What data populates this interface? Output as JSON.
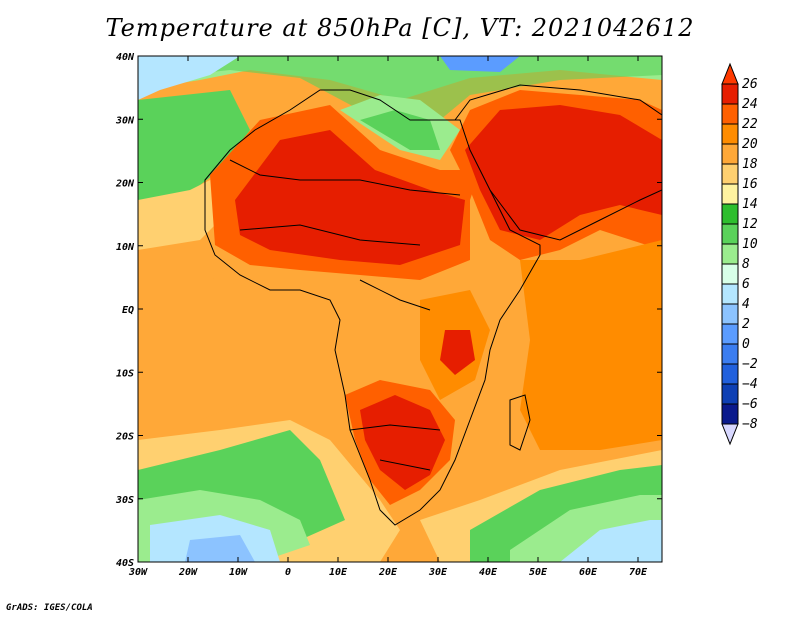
{
  "title": "Temperature at 850hPa [C], VT: 2021042612",
  "credit": "GrADS: IGES/COLA",
  "map": {
    "lat_labels": [
      "40N",
      "30N",
      "20N",
      "10N",
      "EQ",
      "10S",
      "20S",
      "30S",
      "40S"
    ],
    "lon_labels": [
      "30W",
      "20W",
      "10W",
      "0",
      "10E",
      "20E",
      "30E",
      "40E",
      "50E",
      "60E",
      "70E"
    ]
  },
  "colorbar": {
    "levels": [
      26,
      24,
      22,
      20,
      18,
      16,
      14,
      12,
      10,
      8,
      6,
      4,
      2,
      0,
      -2,
      -4,
      -6,
      -8
    ],
    "label_text": [
      "26",
      "24",
      "22",
      "20",
      "18",
      "16",
      "14",
      "12",
      "10",
      "8",
      "6",
      "4",
      "2",
      "0",
      "−2",
      "−4",
      "−6",
      "−8"
    ],
    "colors": [
      "#ff3a00",
      "#e61e00",
      "#ff6000",
      "#ff8c00",
      "#ffa838",
      "#ffd070",
      "#fff3a0",
      "#2ebe2e",
      "#5ad25a",
      "#9bec8e",
      "#d8ffe8",
      "#b4e6ff",
      "#8cc3ff",
      "#5b9cff",
      "#3b7df0",
      "#2160dc",
      "#0e40b4",
      "#0a1a8c",
      "#101068"
    ]
  }
}
